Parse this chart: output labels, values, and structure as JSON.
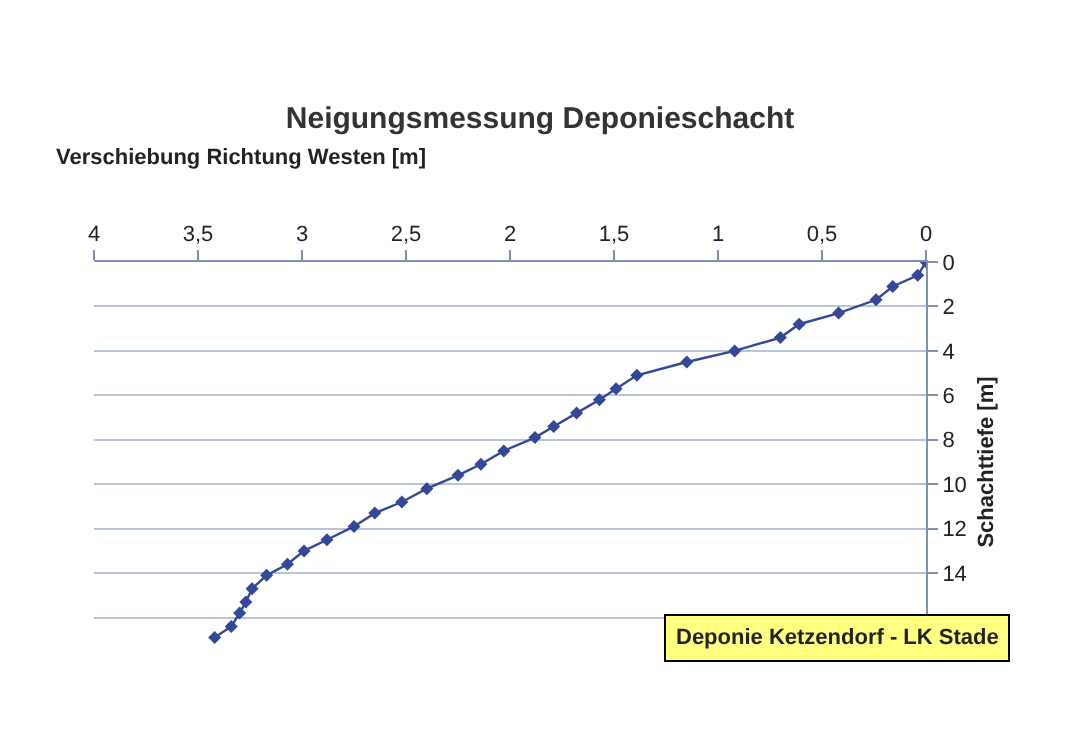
{
  "chart_data": {
    "type": "line",
    "title": "Neigungsmessung Deponieschacht",
    "xlabel": "Verschiebung Richtung Westen [m]",
    "ylabel": "Schachttiefe [m]",
    "annotations": [
      "Deponie Ketzendorf - LK Stade"
    ],
    "xlim": [
      4,
      0
    ],
    "xticks": [
      4,
      {
        "value": 3.5,
        "label": "3,5"
      },
      3,
      {
        "value": 2.5,
        "label": "2,5"
      },
      2,
      {
        "value": 1.5,
        "label": "1,5"
      },
      1,
      {
        "value": 0.5,
        "label": "0,5"
      },
      0
    ],
    "ylim": [
      18,
      0
    ],
    "yticks": [
      0,
      2,
      4,
      6,
      8,
      10,
      12,
      14,
      {
        "value": 16,
        "label": null
      }
    ],
    "grid": "y",
    "marker": "diamond",
    "line_style": "solid",
    "series": [
      {
        "color": "#34489a",
        "x": [
          0,
          0.04,
          0.16,
          0.24,
          0.42,
          0.61,
          0.7,
          0.92,
          1.15,
          1.39,
          1.49,
          1.57,
          1.68,
          1.79,
          1.88,
          2.03,
          2.14,
          2.25,
          2.4,
          2.52,
          2.65,
          2.75,
          2.88,
          2.99,
          3.07,
          3.17,
          3.24,
          3.27,
          3.3,
          3.34,
          3.42
        ],
        "values": [
          0,
          0.6,
          1.1,
          1.7,
          2.3,
          2.8,
          3.4,
          4.0,
          4.5,
          5.1,
          5.7,
          6.2,
          6.8,
          7.4,
          7.9,
          8.5,
          9.1,
          9.6,
          10.2,
          10.8,
          11.3,
          11.9,
          12.5,
          13.0,
          13.6,
          14.1,
          14.7,
          15.3,
          15.8,
          16.4,
          16.9
        ]
      }
    ]
  }
}
